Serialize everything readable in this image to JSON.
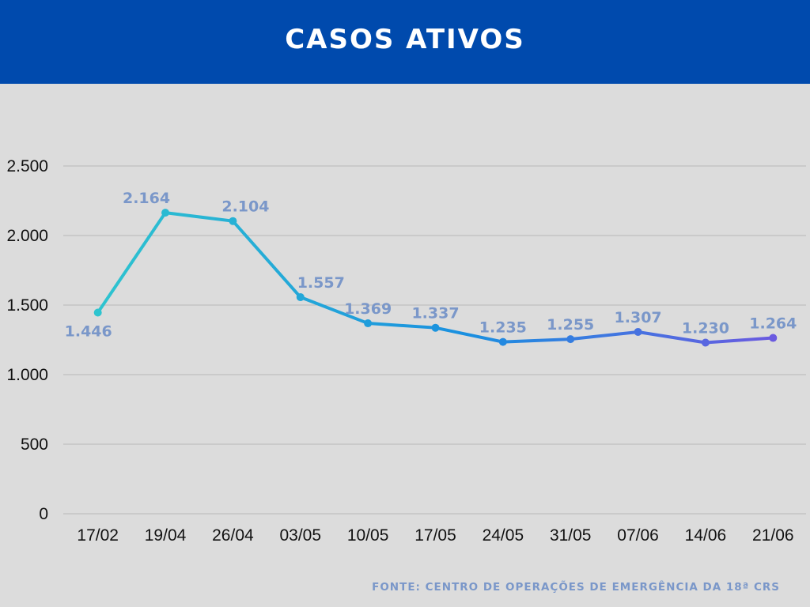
{
  "header": {
    "title": "CASOS ATIVOS"
  },
  "footer": {
    "source": "FONTE: CENTRO DE OPERAÇÕES DE EMERGÊNCIA DA 18ª CRS"
  },
  "chart_data": {
    "type": "line",
    "title": "CASOS ATIVOS",
    "categories": [
      "17/02",
      "19/04",
      "26/04",
      "03/05",
      "10/05",
      "17/05",
      "24/05",
      "31/05",
      "07/06",
      "14/06",
      "21/06"
    ],
    "values": [
      1446,
      2164,
      2104,
      1557,
      1369,
      1337,
      1235,
      1255,
      1307,
      1230,
      1264
    ],
    "value_labels": [
      "1.446",
      "2.164",
      "2.104",
      "1.557",
      "1.369",
      "1.337",
      "1.235",
      "1.255",
      "1.307",
      "1.230",
      "1.264"
    ],
    "yticks": [
      0,
      500,
      1000,
      1500,
      2000,
      2500
    ],
    "ytick_labels": [
      "0",
      "500",
      "1.000",
      "1.500",
      "2.000",
      "2.500"
    ],
    "ylim": [
      0,
      2500
    ],
    "xlabel": "",
    "ylabel": "",
    "grid": true,
    "legend": "none",
    "colors": {
      "line_start": "#2ec4cf",
      "line_mid": "#1a8fe0",
      "line_end": "#6a5ae0",
      "label": "#7a97c9",
      "grid": "#b8b8b8",
      "axis_text": "#111111",
      "header_bg": "#004aad"
    }
  }
}
